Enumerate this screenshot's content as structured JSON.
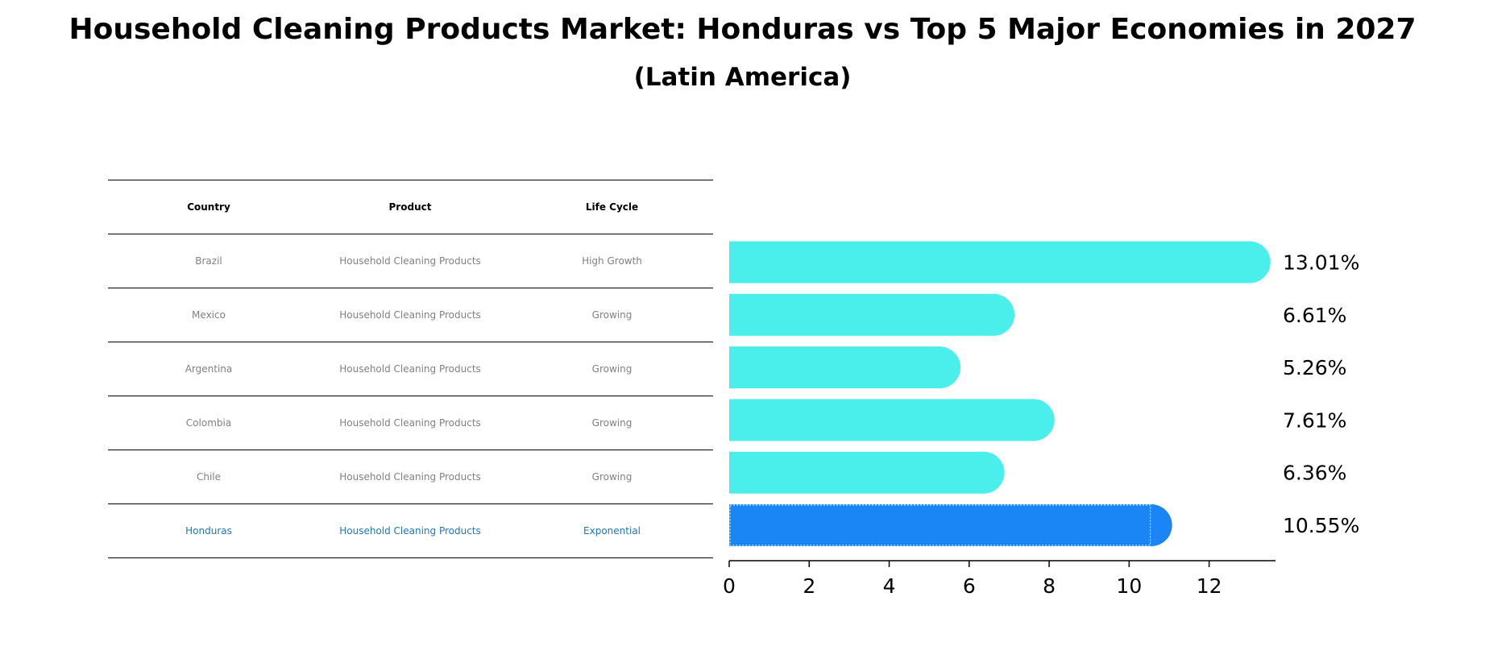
{
  "chart_data": {
    "type": "bar",
    "orientation": "horizontal",
    "title": "Household Cleaning Products Market: Honduras vs Top 5 Major Economies in 2027",
    "subtitle": "(Latin America)",
    "categories": [
      "Brazil",
      "Mexico",
      "Argentina",
      "Colombia",
      "Chile",
      "Honduras"
    ],
    "values": [
      13.01,
      6.61,
      5.26,
      7.61,
      6.36,
      10.55
    ],
    "value_labels": [
      "13.01%",
      "6.61%",
      "5.26%",
      "7.61%",
      "6.36%",
      "10.55%"
    ],
    "highlight_index": 5,
    "xlim": [
      0,
      13.66
    ],
    "xticks": [
      0,
      2,
      4,
      6,
      8,
      10,
      12
    ],
    "xlabel": "",
    "ylabel": "",
    "colors": {
      "bar": "#4AEFEB",
      "highlight": "#1A85F5",
      "highlight_text": "#1f77b4"
    }
  },
  "table": {
    "headers": [
      "Country",
      "Product",
      "Life Cycle"
    ],
    "rows": [
      [
        "Brazil",
        "Household Cleaning Products",
        "High Growth"
      ],
      [
        "Mexico",
        "Household Cleaning Products",
        "Growing"
      ],
      [
        "Argentina",
        "Household Cleaning Products",
        "Growing"
      ],
      [
        "Colombia",
        "Household Cleaning Products",
        "Growing"
      ],
      [
        "Chile",
        "Household Cleaning Products",
        "Growing"
      ],
      [
        "Honduras",
        "Household Cleaning Products",
        "Exponential"
      ]
    ]
  }
}
